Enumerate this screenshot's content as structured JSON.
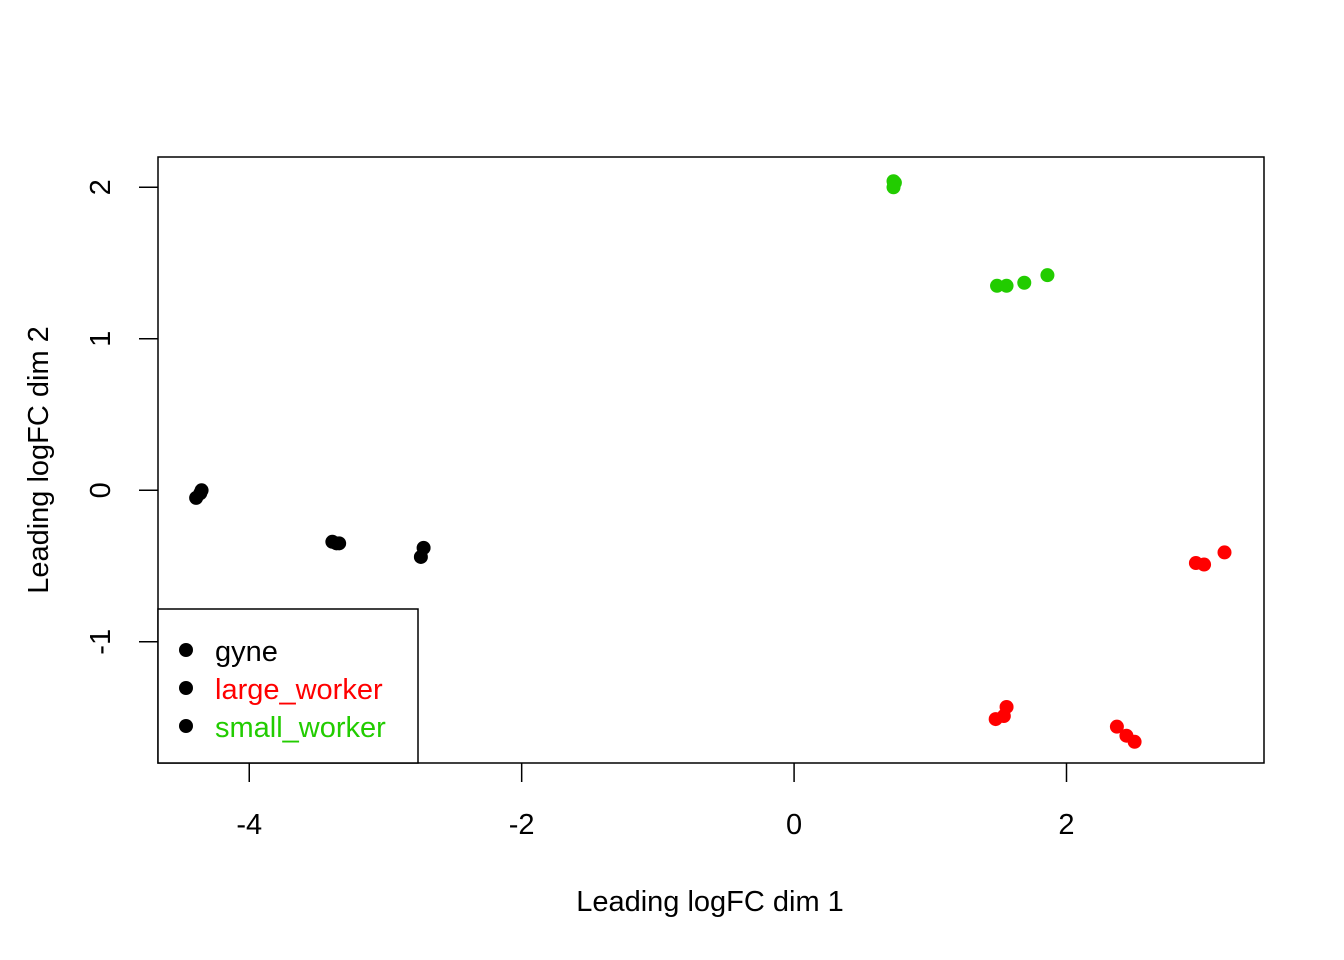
{
  "chart_data": {
    "type": "scatter",
    "xlabel": "Leading logFC dim 1",
    "ylabel": "Leading logFC dim 2",
    "xlim": [
      -4.67,
      3.45
    ],
    "ylim": [
      -1.8,
      2.2
    ],
    "xticks": [
      {
        "value": -4,
        "label": "-4"
      },
      {
        "value": -2,
        "label": "-2"
      },
      {
        "value": 0,
        "label": "0"
      },
      {
        "value": 2,
        "label": "2"
      }
    ],
    "yticks": [
      {
        "value": 2,
        "label": "2"
      },
      {
        "value": 1,
        "label": "1"
      },
      {
        "value": 0,
        "label": "0"
      },
      {
        "value": -1,
        "label": "-1"
      }
    ],
    "legend_position": "bottom-left",
    "series": [
      {
        "name": "gyne",
        "color": "#000000",
        "legend_text_color": "#000000",
        "legend_marker_color": "#000000",
        "points": [
          {
            "x": -4.35,
            "y": 0.0
          },
          {
            "x": -4.36,
            "y": -0.02
          },
          {
            "x": -4.39,
            "y": -0.05
          },
          {
            "x": -3.39,
            "y": -0.34
          },
          {
            "x": -3.36,
            "y": -0.35
          },
          {
            "x": -3.34,
            "y": -0.35
          },
          {
            "x": -2.72,
            "y": -0.38
          },
          {
            "x": -2.74,
            "y": -0.44
          }
        ]
      },
      {
        "name": "large_worker",
        "color": "#ff0000",
        "legend_text_color": "#ff0000",
        "legend_marker_color": "#000000",
        "points": [
          {
            "x": 2.95,
            "y": -0.48
          },
          {
            "x": 3.01,
            "y": -0.49
          },
          {
            "x": 3.16,
            "y": -0.41
          },
          {
            "x": 1.56,
            "y": -1.43
          },
          {
            "x": 1.48,
            "y": -1.51
          },
          {
            "x": 1.54,
            "y": -1.49
          },
          {
            "x": 2.37,
            "y": -1.56
          },
          {
            "x": 2.44,
            "y": -1.62
          },
          {
            "x": 2.5,
            "y": -1.66
          }
        ]
      },
      {
        "name": "small_worker",
        "color": "#22cc00",
        "legend_text_color": "#22cc00",
        "legend_marker_color": "#000000",
        "points": [
          {
            "x": 0.73,
            "y": 2.04
          },
          {
            "x": 0.74,
            "y": 2.03
          },
          {
            "x": 0.73,
            "y": 2.0
          },
          {
            "x": 1.49,
            "y": 1.35
          },
          {
            "x": 1.56,
            "y": 1.35
          },
          {
            "x": 1.69,
            "y": 1.37
          },
          {
            "x": 1.86,
            "y": 1.42
          }
        ]
      }
    ]
  }
}
